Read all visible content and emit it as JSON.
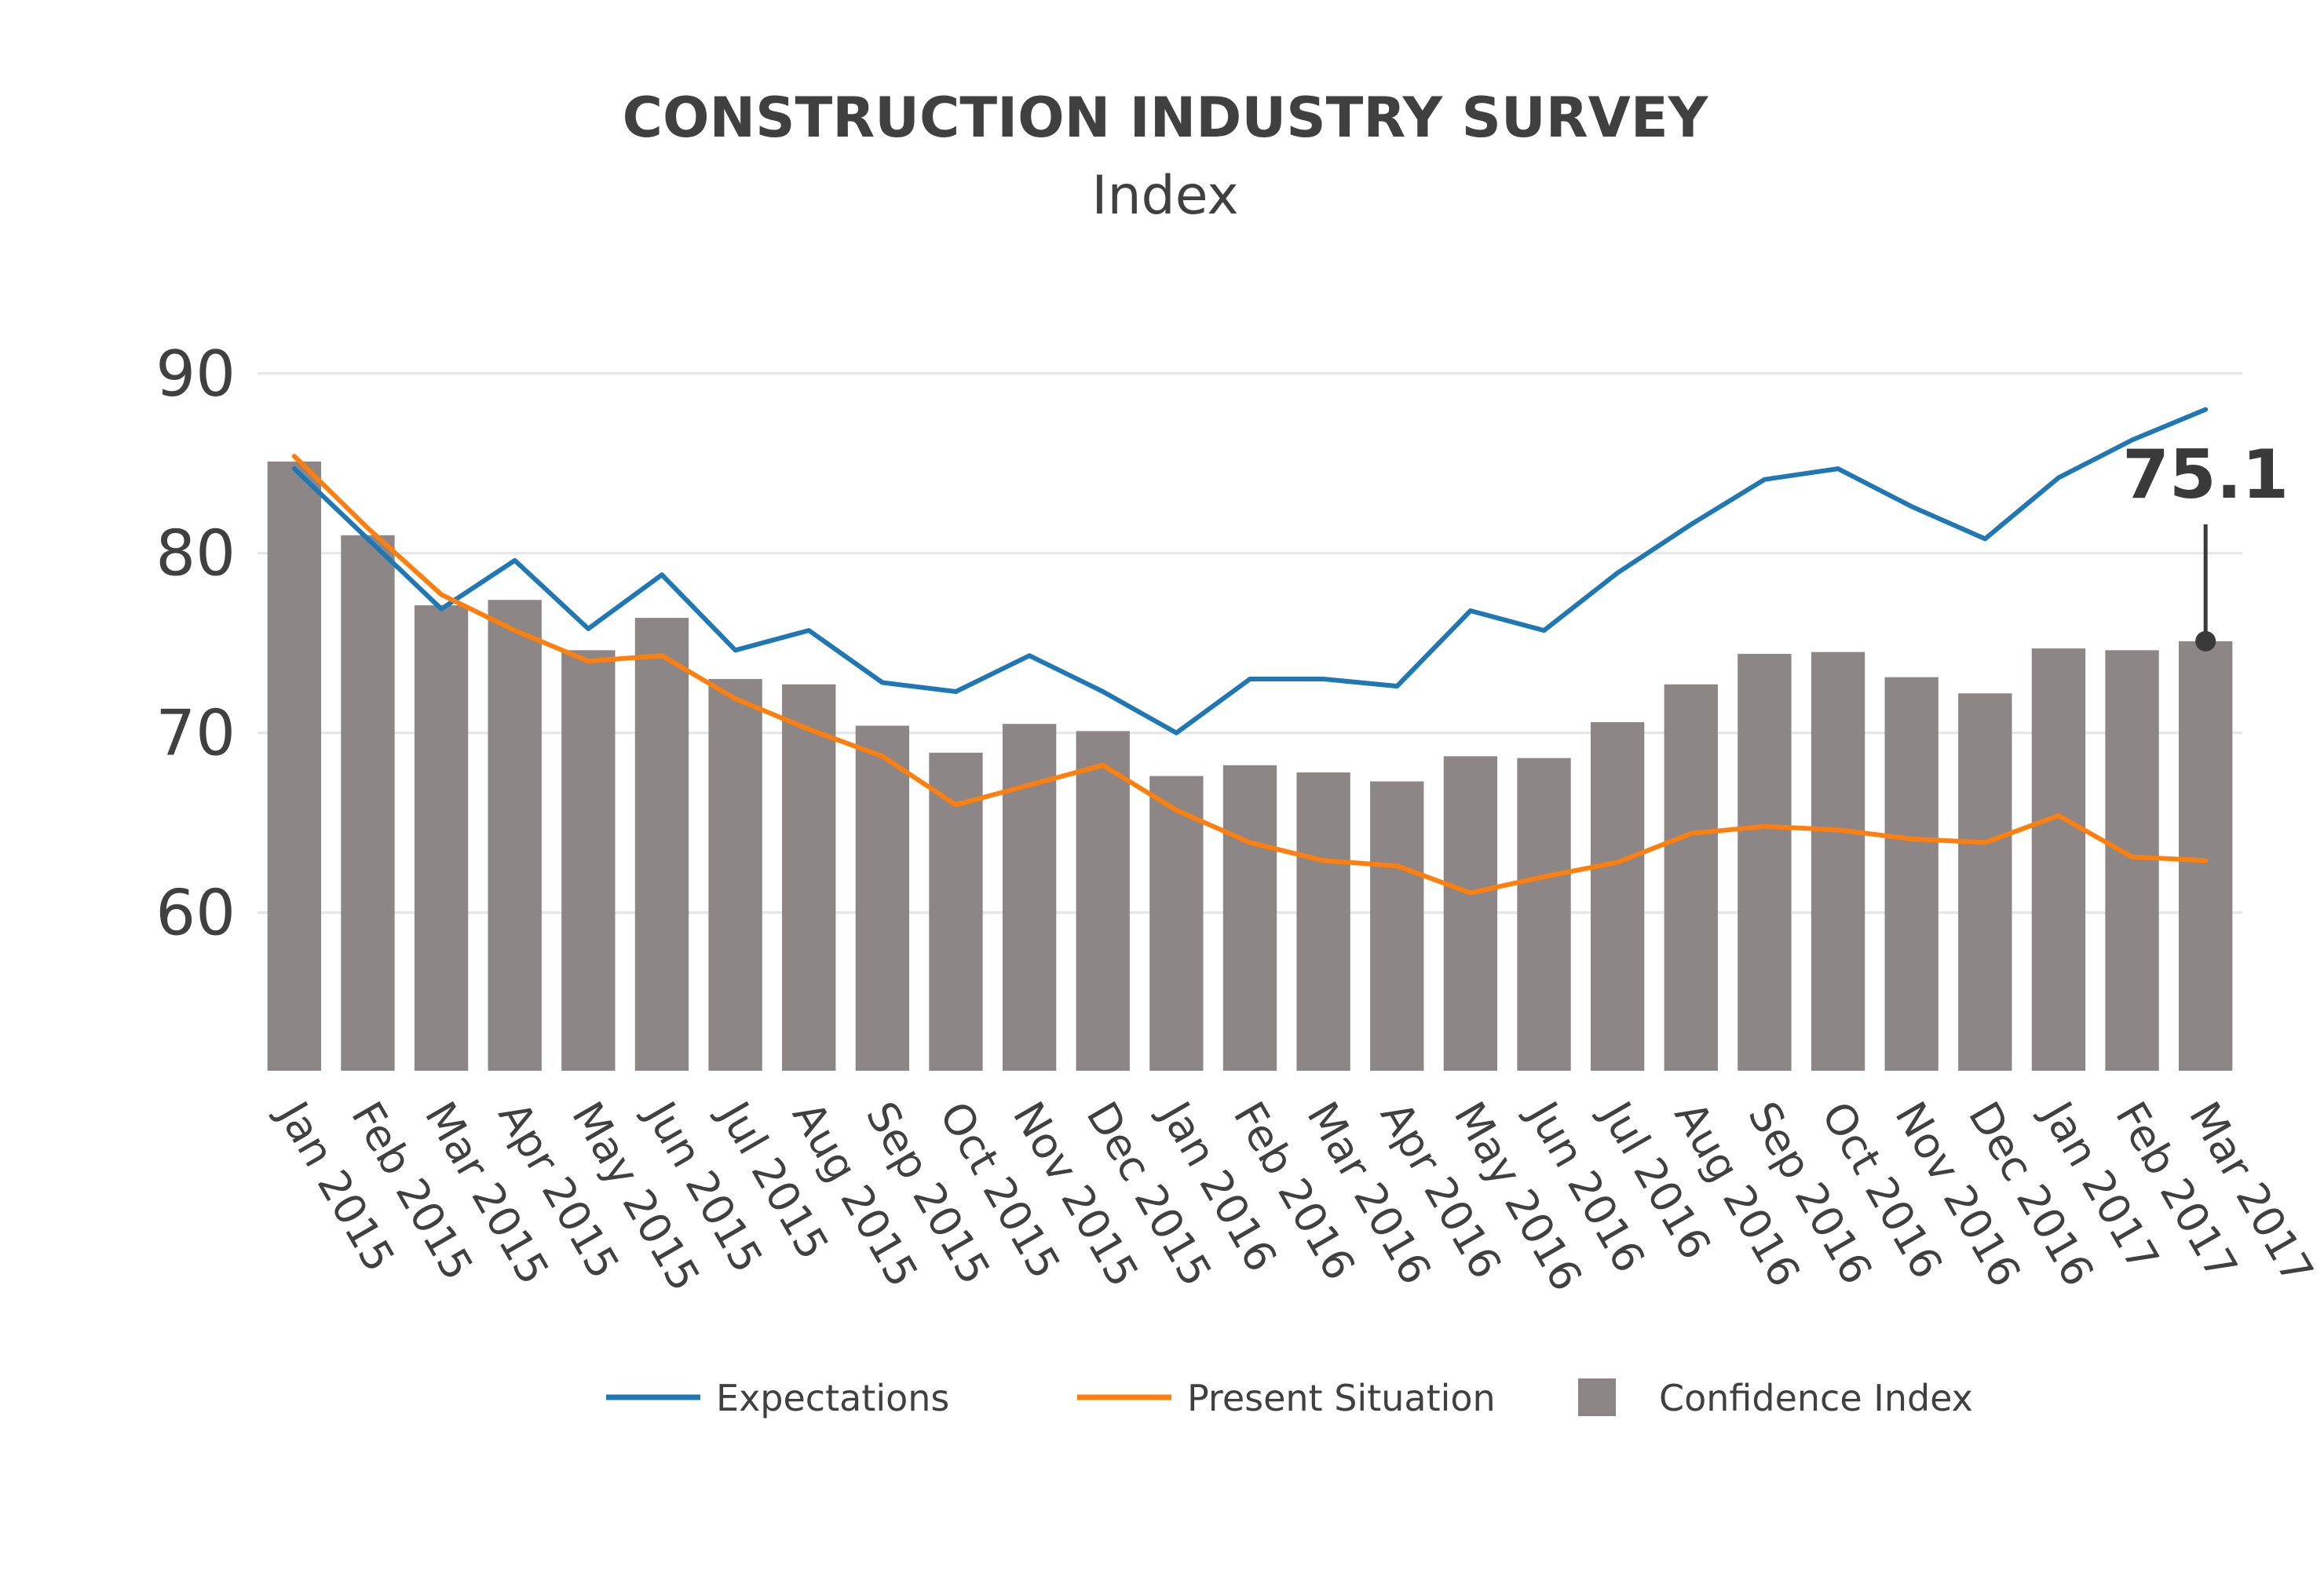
{
  "chart_data": {
    "type": "bar",
    "title": "CONSTRUCTION INDUSTRY SURVEY",
    "subtitle": "Index",
    "xlabel": "",
    "ylabel": "",
    "ylim": [
      51.2,
      92
    ],
    "yticks": [
      60,
      70,
      80,
      90
    ],
    "grid": true,
    "legend_position": "bottom",
    "categories": [
      "Jan 2015",
      "Feb 2015",
      "Mar 2015",
      "Apr 2015",
      "May 2015",
      "Jun 2015",
      "Jul 2015",
      "Aug 2015",
      "Sep 2015",
      "Oct 2015",
      "Nov 2015",
      "Dec 2015",
      "Jan 2016",
      "Feb 2016",
      "Mar 2016",
      "Apr 2016",
      "May 2016",
      "Jun 2016",
      "Jul 2016",
      "Aug 2016",
      "Sep 2016",
      "Oct 2016",
      "Nov 2016",
      "Dec 2016",
      "Jan 2017",
      "Feb 2017",
      "Mar 2017"
    ],
    "series": [
      {
        "name": "Expectations",
        "kind": "line",
        "color": "#1f77b4",
        "values": [
          84.7,
          80.8,
          76.9,
          79.6,
          75.8,
          78.8,
          74.6,
          75.7,
          72.8,
          72.3,
          74.3,
          72.3,
          70.0,
          73.0,
          73.0,
          72.6,
          76.8,
          75.7,
          78.9,
          81.6,
          84.1,
          84.7,
          82.6,
          80.8,
          84.2,
          86.3,
          88.0
        ]
      },
      {
        "name": "Present Situation",
        "kind": "line",
        "color": "#ff7f0e",
        "values": [
          85.4,
          81.4,
          77.7,
          75.7,
          74.0,
          74.3,
          71.9,
          70.2,
          68.7,
          66.0,
          67.1,
          68.2,
          65.7,
          63.9,
          62.9,
          62.6,
          61.1,
          62.0,
          62.8,
          64.4,
          64.8,
          64.6,
          64.1,
          63.9,
          65.4,
          63.1,
          62.9
        ]
      },
      {
        "name": "Confidence Index",
        "kind": "bar",
        "color": "#8c8686",
        "values": [
          85.1,
          81.0,
          77.1,
          77.4,
          74.6,
          76.4,
          73.0,
          72.7,
          70.4,
          68.9,
          70.5,
          70.1,
          67.6,
          68.2,
          67.8,
          67.3,
          68.7,
          68.6,
          70.6,
          72.7,
          74.4,
          74.5,
          73.1,
          72.2,
          74.7,
          74.6,
          75.1
        ]
      }
    ],
    "annotations": [
      {
        "text": "75.1",
        "series": "Confidence Index",
        "category": "Mar 2017",
        "value": 75.1
      }
    ]
  }
}
